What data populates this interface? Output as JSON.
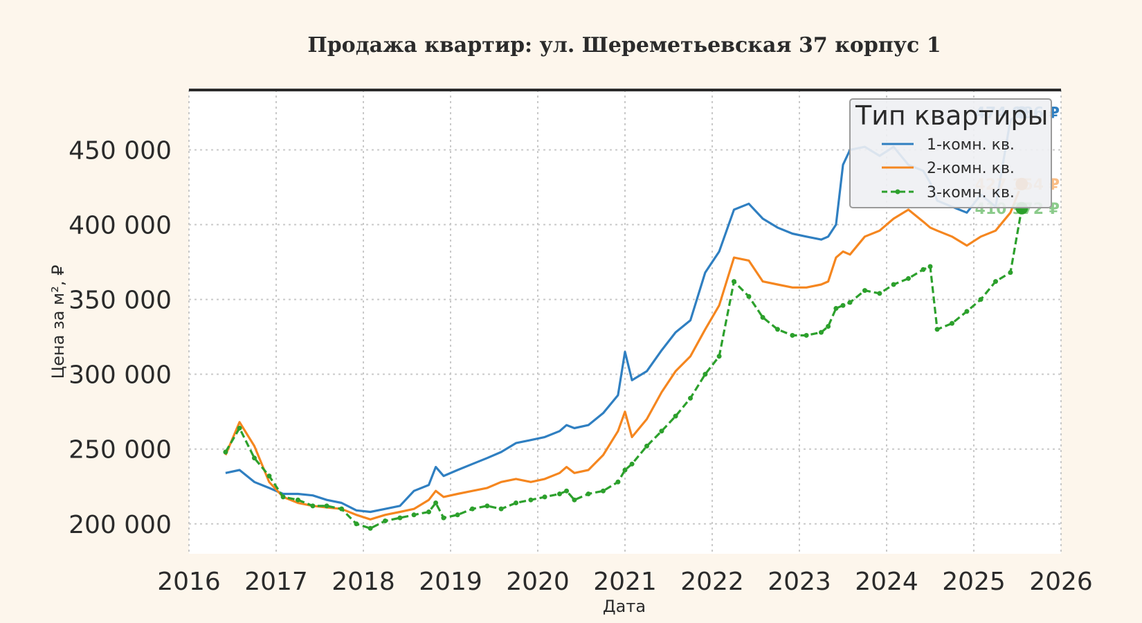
{
  "colors": {
    "series1": "#2f7fc1",
    "series2": "#f5861f",
    "series3": "#2ca02c",
    "background": "#fdf6ec",
    "plot_bg": "#ffffff",
    "grid": "#c9c9c9",
    "text": "#2b2b2b"
  },
  "chart_data": {
    "type": "line",
    "title": "Продажа квартир: ул. Шереметьевская 37 корпус 1",
    "xlabel": "Дата",
    "ylabel": "Цена за м², ₽",
    "xlim": [
      2016,
      2026
    ],
    "ylim": [
      180000,
      490000
    ],
    "x_ticks": [
      "2016",
      "2017",
      "2018",
      "2019",
      "2020",
      "2021",
      "2022",
      "2023",
      "2024",
      "2025",
      "2026"
    ],
    "y_ticks": [
      "200 000",
      "250 000",
      "300 000",
      "350 000",
      "400 000",
      "450 000"
    ],
    "y_tick_values": [
      200000,
      250000,
      300000,
      350000,
      400000,
      450000
    ],
    "grid": true,
    "legend": {
      "title": "Тип квартиры",
      "placement": "top-right"
    },
    "x": [
      2016.42,
      2016.58,
      2016.75,
      2016.92,
      2017.08,
      2017.25,
      2017.42,
      2017.58,
      2017.75,
      2017.92,
      2018.08,
      2018.25,
      2018.42,
      2018.58,
      2018.75,
      2018.83,
      2018.92,
      2019.08,
      2019.25,
      2019.42,
      2019.58,
      2019.75,
      2019.92,
      2020.08,
      2020.25,
      2020.33,
      2020.42,
      2020.58,
      2020.75,
      2020.92,
      2021.0,
      2021.08,
      2021.25,
      2021.42,
      2021.58,
      2021.75,
      2021.92,
      2022.08,
      2022.25,
      2022.42,
      2022.58,
      2022.75,
      2022.92,
      2023.08,
      2023.25,
      2023.33,
      2023.42,
      2023.5,
      2023.58,
      2023.75,
      2023.92,
      2024.08,
      2024.25,
      2024.42,
      2024.5,
      2024.58,
      2024.75,
      2024.92,
      2025.08,
      2025.25,
      2025.42,
      2025.55
    ],
    "series": [
      {
        "name": "1-комн. кв.",
        "values": [
          234000,
          236000,
          228000,
          224000,
          220000,
          220000,
          219000,
          216000,
          214000,
          209000,
          208000,
          210000,
          212000,
          222000,
          226000,
          238000,
          232000,
          236000,
          240000,
          244000,
          248000,
          254000,
          256000,
          258000,
          262000,
          266000,
          264000,
          266000,
          274000,
          286000,
          315000,
          296000,
          302000,
          316000,
          328000,
          336000,
          368000,
          382000,
          410000,
          414000,
          404000,
          398000,
          394000,
          392000,
          390000,
          392000,
          400000,
          440000,
          450000,
          452000,
          446000,
          452000,
          440000,
          436000,
          428000,
          416000,
          412000,
          408000,
          420000,
          412000,
          470000,
          474986
        ]
      },
      {
        "name": "2-комн. кв.",
        "values": [
          246000,
          268000,
          252000,
          228000,
          218000,
          214000,
          212000,
          211000,
          210000,
          206000,
          203000,
          206000,
          208000,
          210000,
          216000,
          222000,
          218000,
          220000,
          222000,
          224000,
          228000,
          230000,
          228000,
          230000,
          234000,
          238000,
          234000,
          236000,
          246000,
          262000,
          275000,
          258000,
          270000,
          288000,
          302000,
          312000,
          330000,
          346000,
          378000,
          376000,
          362000,
          360000,
          358000,
          358000,
          360000,
          362000,
          378000,
          382000,
          380000,
          392000,
          396000,
          404000,
          410000,
          402000,
          398000,
          396000,
          392000,
          386000,
          392000,
          396000,
          408000,
          427154
        ]
      },
      {
        "name": "3-комн. кв.",
        "values": [
          248000,
          264000,
          244000,
          232000,
          218000,
          216000,
          212000,
          212000,
          210000,
          200000,
          197000,
          202000,
          204000,
          206000,
          208000,
          214000,
          204000,
          206000,
          210000,
          212000,
          210000,
          214000,
          216000,
          218000,
          220000,
          222000,
          216000,
          220000,
          222000,
          228000,
          236000,
          240000,
          252000,
          262000,
          272000,
          284000,
          300000,
          312000,
          362000,
          352000,
          338000,
          330000,
          326000,
          326000,
          328000,
          332000,
          344000,
          346000,
          348000,
          356000,
          354000,
          360000,
          364000,
          370000,
          372000,
          330000,
          334000,
          342000,
          350000,
          362000,
          368000,
          410972
        ]
      }
    ],
    "end_labels": [
      "474 986 ₽",
      "427 154 ₽",
      "410 972 ₽"
    ]
  }
}
